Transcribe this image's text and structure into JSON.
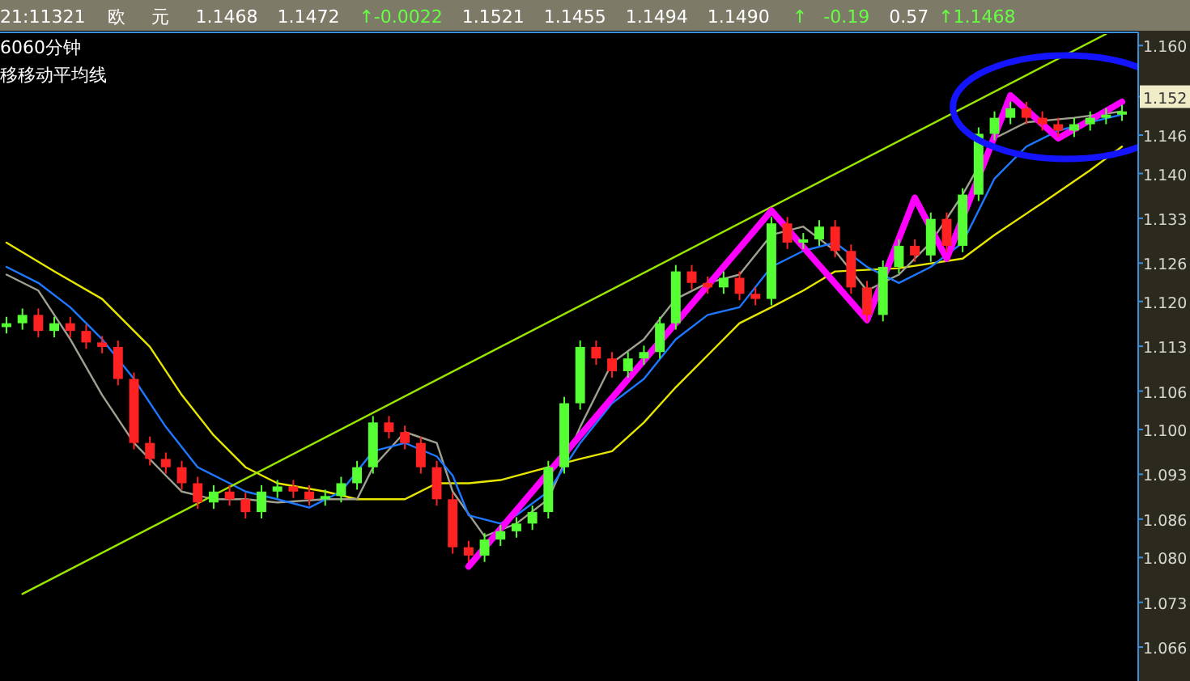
{
  "chart_data": {
    "type": "candlestick",
    "categories": [
      null,
      null,
      null,
      null,
      null,
      null,
      null,
      null,
      null,
      null,
      null,
      null,
      null,
      null,
      null,
      null,
      null,
      null,
      null,
      null,
      null,
      null,
      null,
      null,
      null,
      null,
      null,
      null,
      null,
      null,
      null,
      null,
      null,
      null,
      null,
      null,
      null,
      null,
      null,
      null,
      null,
      null,
      null,
      null,
      null,
      null,
      null,
      null,
      null,
      null,
      null,
      null,
      null,
      null,
      null,
      null,
      null,
      null,
      null,
      null,
      null,
      null,
      null,
      null,
      null,
      null,
      null,
      null,
      null,
      null,
      null
    ],
    "ohlc": [
      [
        1.116,
        1.1176,
        1.115,
        1.1166
      ],
      [
        1.1166,
        1.1189,
        1.1156,
        1.1179
      ],
      [
        1.1179,
        1.1189,
        1.1144,
        1.1154
      ],
      [
        1.1154,
        1.1176,
        1.1144,
        1.1166
      ],
      [
        1.1166,
        1.1176,
        1.1144,
        1.1154
      ],
      [
        1.1154,
        1.1164,
        1.1126,
        1.1136
      ],
      [
        1.1136,
        1.1146,
        1.1119,
        1.1129
      ],
      [
        1.1129,
        1.1139,
        1.1069,
        1.1079
      ],
      [
        1.1079,
        1.1089,
        1.0969,
        1.0979
      ],
      [
        1.0979,
        1.0989,
        1.0944,
        1.0954
      ],
      [
        1.0954,
        1.0964,
        1.0931,
        1.0941
      ],
      [
        1.0941,
        1.0951,
        1.0906,
        1.0916
      ],
      [
        1.0916,
        1.0926,
        1.0876,
        1.0886
      ],
      [
        1.0886,
        1.0913,
        1.0876,
        1.0903
      ],
      [
        1.0903,
        1.0913,
        1.0881,
        1.0891
      ],
      [
        1.0891,
        1.0901,
        1.0861,
        1.0871
      ],
      [
        1.0871,
        1.0913,
        1.0861,
        1.0903
      ],
      [
        1.0903,
        1.0921,
        1.0893,
        1.0911
      ],
      [
        1.0911,
        1.0921,
        1.0893,
        1.0903
      ],
      [
        1.0903,
        1.0913,
        1.0881,
        1.0891
      ],
      [
        1.0891,
        1.0906,
        1.0881,
        1.0896
      ],
      [
        1.0896,
        1.0926,
        1.0886,
        1.0916
      ],
      [
        1.0916,
        1.0951,
        1.0906,
        1.0941
      ],
      [
        1.0941,
        1.1021,
        1.0931,
        1.1011
      ],
      [
        1.1011,
        1.1021,
        1.0986,
        1.0996
      ],
      [
        1.0996,
        1.1006,
        1.0969,
        1.0979
      ],
      [
        1.0979,
        1.0989,
        1.0931,
        1.0941
      ],
      [
        1.0941,
        1.0951,
        1.0881,
        1.0891
      ],
      [
        1.0891,
        1.0901,
        1.0806,
        1.0816
      ],
      [
        1.0816,
        1.0826,
        1.0793,
        1.0803
      ],
      [
        1.0803,
        1.0838,
        1.0793,
        1.0828
      ],
      [
        1.0828,
        1.0851,
        1.0818,
        1.0841
      ],
      [
        1.0841,
        1.0863,
        1.0831,
        1.0853
      ],
      [
        1.0853,
        1.0881,
        1.0843,
        1.0871
      ],
      [
        1.0871,
        1.0951,
        1.0861,
        1.0941
      ],
      [
        1.0941,
        1.1051,
        1.0931,
        1.1041
      ],
      [
        1.1041,
        1.1139,
        1.1031,
        1.1129
      ],
      [
        1.1129,
        1.1139,
        1.1101,
        1.1111
      ],
      [
        1.1111,
        1.1121,
        1.1081,
        1.1091
      ],
      [
        1.1091,
        1.1121,
        1.1081,
        1.1111
      ],
      [
        1.1111,
        1.1131,
        1.1101,
        1.1121
      ],
      [
        1.1121,
        1.1176,
        1.1111,
        1.1166
      ],
      [
        1.1166,
        1.1257,
        1.1156,
        1.1247
      ],
      [
        1.1247,
        1.1257,
        1.1219,
        1.1229
      ],
      [
        1.1229,
        1.1239,
        1.1212,
        1.1222
      ],
      [
        1.1222,
        1.1247,
        1.1212,
        1.1237
      ],
      [
        1.1237,
        1.1247,
        1.1202,
        1.1212
      ],
      [
        1.1212,
        1.1222,
        1.1194,
        1.1204
      ],
      [
        1.1204,
        1.1332,
        1.1194,
        1.1322
      ],
      [
        1.1322,
        1.1332,
        1.1282,
        1.1292
      ],
      [
        1.1292,
        1.1307,
        1.1282,
        1.1297
      ],
      [
        1.1297,
        1.1327,
        1.1287,
        1.1317
      ],
      [
        1.1317,
        1.1327,
        1.1269,
        1.1279
      ],
      [
        1.1279,
        1.1289,
        1.1212,
        1.1222
      ],
      [
        1.1222,
        1.1232,
        1.1169,
        1.1179
      ],
      [
        1.1179,
        1.1264,
        1.1169,
        1.1254
      ],
      [
        1.1254,
        1.1297,
        1.1244,
        1.1287
      ],
      [
        1.1287,
        1.1297,
        1.1262,
        1.1272
      ],
      [
        1.1272,
        1.1339,
        1.1262,
        1.1329
      ],
      [
        1.1329,
        1.1339,
        1.1277,
        1.1287
      ],
      [
        1.1287,
        1.1377,
        1.1277,
        1.1367
      ],
      [
        1.1367,
        1.1472,
        1.1357,
        1.1462
      ],
      [
        1.1462,
        1.1497,
        1.1452,
        1.1487
      ],
      [
        1.1487,
        1.1512,
        1.1477,
        1.1502
      ],
      [
        1.1502,
        1.1512,
        1.1477,
        1.1487
      ],
      [
        1.1487,
        1.1497,
        1.1467,
        1.1477
      ],
      [
        1.1477,
        1.1487,
        1.1457,
        1.1467
      ],
      [
        1.1467,
        1.1487,
        1.1457,
        1.1477
      ],
      [
        1.1477,
        1.1497,
        1.1467,
        1.1487
      ],
      [
        1.1487,
        1.1502,
        1.1477,
        1.1492
      ],
      [
        1.1492,
        1.1507,
        1.1482,
        1.1497
      ]
    ],
    "series": [
      {
        "type": "line",
        "color": "#e6e600",
        "values": [
          1.1292,
          null,
          null,
          1.1247,
          null,
          null,
          1.1204,
          null,
          null,
          1.1129,
          null,
          1.1054,
          null,
          1.0991,
          null,
          1.0941,
          null,
          1.0916,
          null,
          null,
          1.0903,
          null,
          1.0891,
          null,
          null,
          1.0891,
          null,
          1.0916,
          null,
          1.0916,
          null,
          1.0921,
          null,
          null,
          1.0941,
          null,
          1.0954,
          null,
          1.0966,
          null,
          1.1011,
          null,
          1.1066,
          null,
          1.1116,
          null,
          1.1166,
          null,
          1.1191,
          null,
          1.1217,
          null,
          1.1247,
          null,
          null,
          null,
          1.1252,
          null,
          null,
          null,
          1.1267,
          null,
          1.1304,
          null,
          null,
          1.1354,
          null,
          null,
          1.1405,
          null,
          1.1442
        ]
      },
      {
        "type": "line",
        "color": "#a0a090",
        "values": [
          1.1242,
          null,
          1.1217,
          null,
          1.1141,
          null,
          1.1054,
          null,
          1.0979,
          null,
          1.0928,
          1.0903,
          null,
          1.0891,
          null,
          1.0891,
          null,
          1.0886,
          null,
          null,
          1.0891,
          null,
          1.0891,
          1.0941,
          null,
          1.0996,
          null,
          1.0979,
          1.0903,
          null,
          1.0833,
          null,
          1.0853,
          null,
          1.0891,
          null,
          1.1004,
          null,
          1.1104,
          null,
          1.1141,
          null,
          1.1204,
          null,
          1.1229,
          null,
          1.1242,
          null,
          1.1304,
          null,
          1.1317,
          null,
          1.1279,
          null,
          1.1217,
          null,
          1.1242,
          null,
          1.1292,
          null,
          1.1367,
          null,
          1.1455,
          null,
          1.148,
          null,
          null,
          1.1487,
          null,
          null,
          1.1497
        ]
      },
      {
        "type": "line",
        "color": "#1e78ff",
        "values": [
          1.1254,
          null,
          1.1229,
          null,
          1.1191,
          null,
          1.1141,
          null,
          1.1079,
          null,
          1.1004,
          null,
          1.0941,
          null,
          1.0916,
          1.0903,
          null,
          1.0891,
          null,
          1.0878,
          null,
          1.0903,
          null,
          1.0966,
          null,
          1.0979,
          null,
          1.0958,
          1.0928,
          1.0866,
          null,
          1.0853,
          1.0866,
          null,
          1.0903,
          null,
          1.0979,
          null,
          1.1041,
          null,
          1.1079,
          null,
          1.1141,
          null,
          1.1179,
          null,
          1.1191,
          null,
          1.1254,
          null,
          1.1279,
          null,
          1.1292,
          null,
          1.1254,
          null,
          1.1229,
          null,
          1.1254,
          null,
          1.1292,
          null,
          1.1392,
          null,
          1.1442,
          null,
          1.1467,
          null,
          1.148,
          null,
          1.1492
        ]
      },
      {
        "type": "line",
        "color": "#99e600",
        "values": [
          null,
          1.0743,
          null,
          null,
          null,
          null,
          null,
          null,
          null,
          null,
          null,
          null,
          null,
          null,
          null,
          null,
          null,
          null,
          null,
          null,
          null,
          null,
          null,
          null,
          null,
          null,
          null,
          null,
          null,
          null,
          null,
          null,
          null,
          null,
          null,
          null,
          null,
          null,
          null,
          null,
          null,
          null,
          null,
          null,
          null,
          null,
          null,
          null,
          null,
          null,
          null,
          null,
          null,
          null,
          null,
          null,
          null,
          null,
          null,
          null,
          null,
          null,
          null,
          null,
          null,
          null,
          null,
          null,
          null,
          1.1618,
          null
        ]
      },
      {
        "type": "line",
        "color": "#ff00ff",
        "values": [
          null,
          null,
          null,
          null,
          null,
          null,
          null,
          null,
          null,
          null,
          null,
          null,
          null,
          null,
          null,
          null,
          null,
          null,
          null,
          null,
          null,
          null,
          null,
          null,
          null,
          null,
          null,
          null,
          null,
          1.0786,
          null,
          null,
          null,
          null,
          null,
          null,
          null,
          null,
          null,
          null,
          null,
          null,
          null,
          null,
          null,
          null,
          null,
          null,
          1.1342,
          null,
          null,
          null,
          null,
          null,
          1.1171,
          null,
          null,
          1.1362,
          null,
          1.1267,
          null,
          null,
          null,
          1.1522,
          null,
          null,
          1.1455,
          null,
          null,
          null,
          1.1512
        ]
      }
    ],
    "ylim": [
      1.0607,
      1.1618
    ],
    "yticks": [
      {
        "value": 1.16,
        "label": "1.160"
      },
      {
        "value": 1.152,
        "label": "1.152"
      },
      {
        "value": 1.146,
        "label": "1.146"
      },
      {
        "value": 1.14,
        "label": "1.140"
      },
      {
        "value": 1.133,
        "label": "1.133"
      },
      {
        "value": 1.126,
        "label": "1.126"
      },
      {
        "value": 1.12,
        "label": "1.120"
      },
      {
        "value": 1.113,
        "label": "1.113"
      },
      {
        "value": 1.106,
        "label": "1.106"
      },
      {
        "value": 1.1,
        "label": "1.100"
      },
      {
        "value": 1.093,
        "label": "1.093"
      },
      {
        "value": 1.086,
        "label": "1.086"
      },
      {
        "value": 1.08,
        "label": "1.080"
      },
      {
        "value": 1.073,
        "label": "1.073"
      },
      {
        "value": 1.066,
        "label": "1.066"
      }
    ],
    "annotations": [
      "21:11321",
      "欧",
      "元",
      "1.1468",
      "1.1472",
      "↑-0.0022",
      "1.1521",
      "1.1455",
      "1.1494",
      "1.1490",
      "↑",
      "-0.19",
      "0.57",
      "↑1.1468",
      "6060分钟",
      "移移动平均线"
    ]
  }
}
